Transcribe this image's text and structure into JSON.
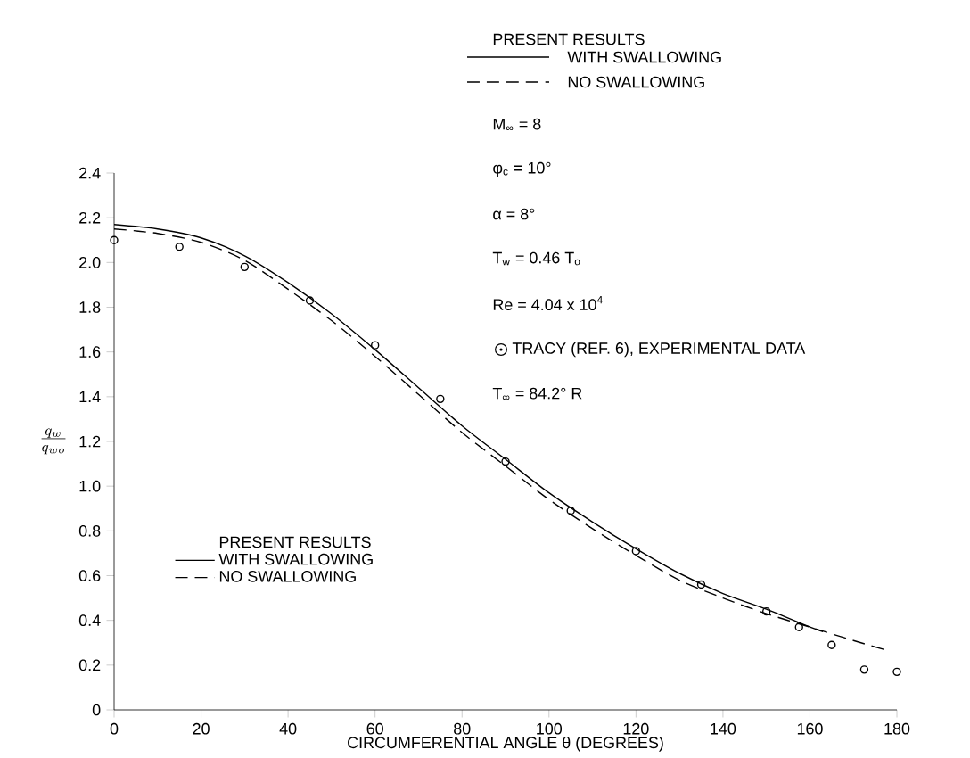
{
  "chart_data": {
    "type": "line",
    "xlabel": "CIRCUMFERENTIAL ANGLE θ (DEGREES)",
    "ylabel": "\\frac{q_{w}}{q_{wo}}",
    "xlim": [
      0,
      180
    ],
    "xticks": [
      0,
      20,
      40,
      60,
      80,
      100,
      120,
      140,
      160,
      180
    ],
    "ylim": [
      0,
      2.4
    ],
    "yticks": [
      0,
      0.2,
      0.4,
      0.6,
      0.8,
      {
        "value": 1,
        "label": "1.0"
      },
      1.2,
      1.4,
      1.6,
      1.8,
      {
        "value": 2,
        "label": "2.0"
      },
      2.2,
      2.4
    ],
    "legend": "left",
    "legend_title": "PRESENT RESULTS",
    "series": [
      {
        "name": "WITH SWALLOWING",
        "color": "#000000",
        "line_style": "solid",
        "marker": "none",
        "x": [
          0,
          10,
          20,
          30,
          40,
          50,
          60,
          70,
          80,
          90,
          100,
          110,
          120,
          130,
          140,
          150,
          160,
          163
        ],
        "values": [
          2.17,
          2.15,
          2.11,
          2.03,
          1.91,
          1.77,
          1.61,
          1.44,
          1.27,
          1.12,
          0.97,
          0.84,
          0.72,
          0.61,
          0.52,
          0.45,
          0.37,
          0.35
        ]
      },
      {
        "name": "NO SWALLOWING",
        "color": "#000000",
        "line_style": "dashed",
        "marker": "none",
        "x": [
          0,
          10,
          20,
          30,
          40,
          50,
          60,
          70,
          80,
          90,
          100,
          110,
          120,
          130,
          140,
          150,
          160,
          170,
          177
        ],
        "values": [
          2.15,
          2.13,
          2.09,
          2.01,
          1.88,
          1.74,
          1.58,
          1.41,
          1.24,
          1.09,
          0.94,
          0.81,
          0.69,
          0.58,
          0.5,
          0.43,
          0.37,
          0.31,
          0.27
        ]
      },
      {
        "name": "TRACY (REF.  6), EXPERIMENTAL DATA",
        "type": "scatter",
        "color": "#000000",
        "marker": "circle",
        "x": [
          0,
          15,
          30,
          45,
          60,
          75,
          90,
          105,
          120,
          135,
          150,
          157.5,
          165,
          172.5,
          180
        ],
        "values": [
          2.1,
          2.07,
          1.98,
          1.83,
          1.63,
          1.39,
          1.11,
          0.89,
          0.71,
          0.56,
          0.44,
          0.37,
          0.29,
          0.18,
          0.17
        ]
      }
    ],
    "annotations": [
      "PRESENT RESULTS",
      "WITH SWALLOWING",
      "NO SWALLOWING",
      "M$_{∞}$ = 8",
      "φ$_{c}$ = 10°",
      "α = 8°",
      "T$_{w}$ = 0.46 T$_{o}$",
      "Re = 4.04 x 10$^{4}$",
      "T$_{∞}$ = 84.2° R"
    ]
  }
}
